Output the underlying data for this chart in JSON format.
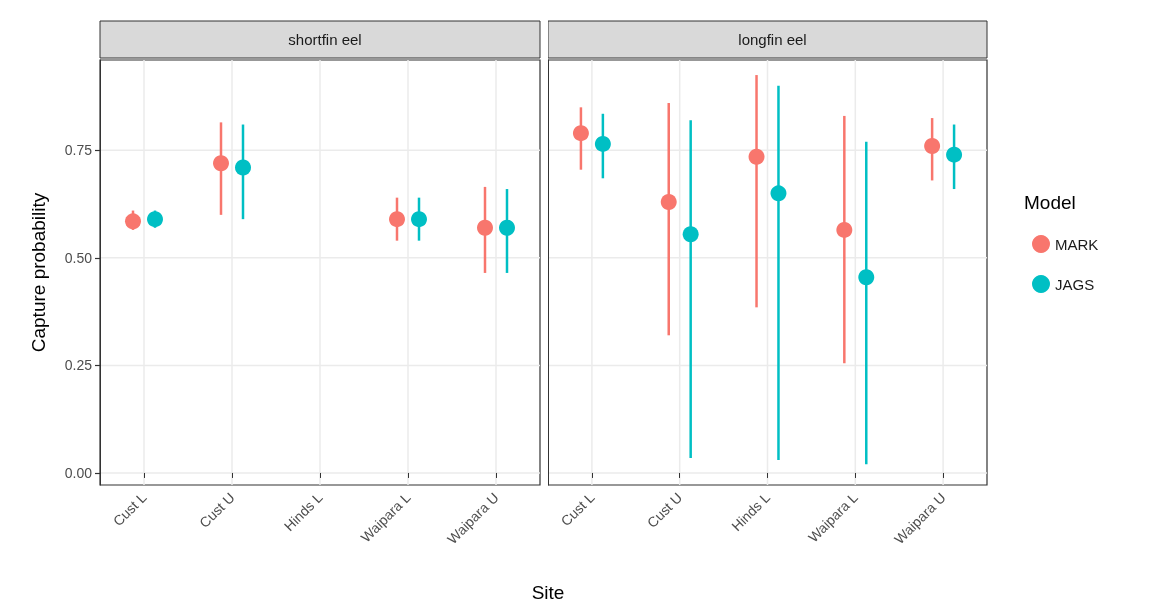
{
  "chart_data": [
    {
      "type": "scatter",
      "title": "shortfin eel",
      "ylabel": "Capture probability",
      "xlabel": "Site",
      "categories": [
        "Cust L",
        "Cust U",
        "Hinds L",
        "Waipara L",
        "Waipara U"
      ],
      "ylim": [
        -0.028,
        0.96
      ],
      "yticks": [
        {
          "value": 0,
          "label": "0.00"
        },
        0.25,
        {
          "value": 0.5,
          "label": "0.50"
        },
        0.75
      ],
      "grid": true,
      "legend": false,
      "marker": "circle",
      "series": [
        {
          "color": "#f8766d",
          "values": [
            0.585,
            0.72,
            null,
            0.59,
            0.57
          ],
          "errors": [
            [
              0.565,
              0.61
            ],
            [
              0.6,
              0.815
            ],
            null,
            [
              0.54,
              0.64
            ],
            [
              0.465,
              0.665
            ]
          ]
        },
        {
          "color": "#00bfc4",
          "values": [
            0.59,
            0.71,
            null,
            0.59,
            0.57
          ],
          "errors": [
            [
              0.57,
              0.61
            ],
            [
              0.59,
              0.81
            ],
            null,
            [
              0.54,
              0.64
            ],
            [
              0.465,
              0.66
            ]
          ]
        }
      ]
    },
    {
      "type": "scatter",
      "title": "longfin eel",
      "legend_title": "Model",
      "categories": [
        "Cust L",
        "Cust U",
        "Hinds L",
        "Waipara L",
        "Waipara U"
      ],
      "ylim": [
        -0.028,
        0.96
      ],
      "yticks": [
        0,
        0.25,
        0.5,
        0.75
      ],
      "tick_labels": "x",
      "grid": true,
      "legend": "right",
      "marker": "circle",
      "series": [
        {
          "name": "MARK",
          "color": "#f8766d",
          "values": [
            0.79,
            0.63,
            0.735,
            0.565,
            0.76
          ],
          "errors": [
            [
              0.705,
              0.85
            ],
            [
              0.32,
              0.86
            ],
            [
              0.385,
              0.925
            ],
            [
              0.255,
              0.83
            ],
            [
              0.68,
              0.825
            ]
          ]
        },
        {
          "name": "JAGS",
          "color": "#00bfc4",
          "values": [
            0.765,
            0.555,
            0.65,
            0.455,
            0.74
          ],
          "errors": [
            [
              0.685,
              0.835
            ],
            [
              0.035,
              0.82
            ],
            [
              0.03,
              0.9
            ],
            [
              0.02,
              0.77
            ],
            [
              0.66,
              0.81
            ]
          ]
        }
      ]
    }
  ]
}
